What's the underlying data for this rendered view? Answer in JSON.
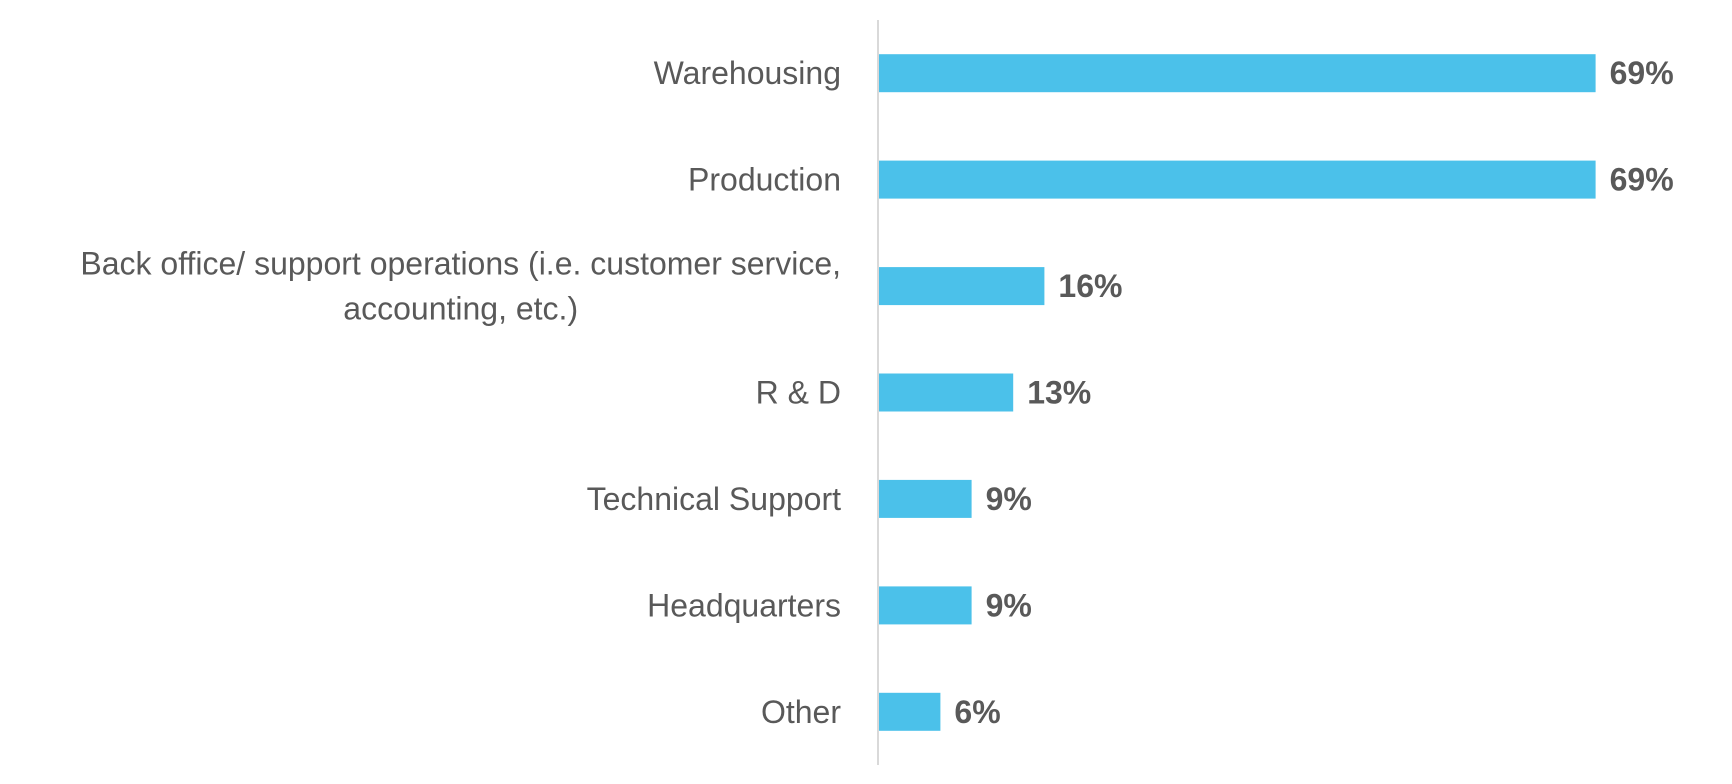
{
  "chart_data": {
    "type": "bar",
    "orientation": "horizontal",
    "title": "",
    "xlabel": "",
    "ylabel": "",
    "xlim": [
      0,
      100
    ],
    "grid": false,
    "legend": false,
    "categories": [
      [
        "Warehousing"
      ],
      [
        "Production"
      ],
      [
        "Back office/ support operations (i.e. customer service,",
        "accounting, etc.)"
      ],
      [
        "R & D"
      ],
      [
        "Technical Support"
      ],
      [
        "Headquarters"
      ],
      [
        "Other"
      ]
    ],
    "values": [
      69,
      69,
      16,
      13,
      9,
      9,
      6
    ],
    "value_labels": [
      "69%",
      "69%",
      "16%",
      "13%",
      "9%",
      "9%",
      "6%"
    ],
    "bar_color": "#4BC1EA",
    "axis_color": "#D9D9D9",
    "text_color": "#595959"
  }
}
